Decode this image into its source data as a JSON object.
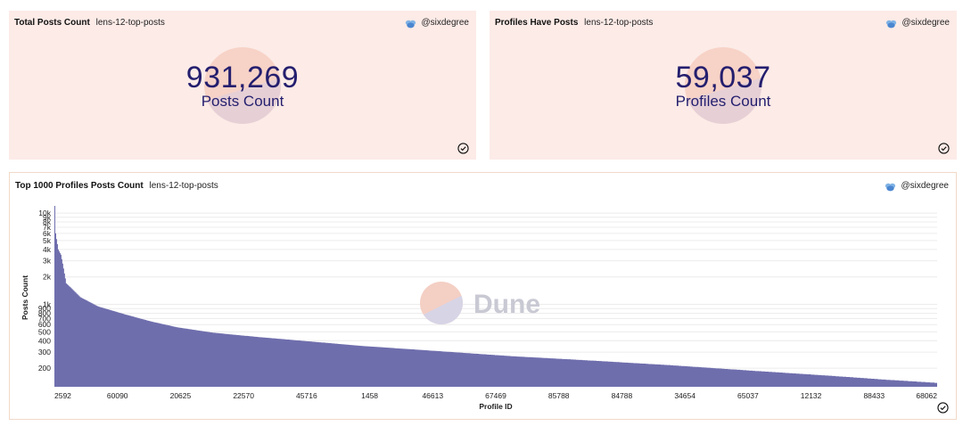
{
  "cards": [
    {
      "title": "Total Posts Count",
      "subtitle": "lens-12-top-posts",
      "author": "@sixdegree",
      "value": "931,269",
      "caption": "Posts Count"
    },
    {
      "title": "Profiles Have Posts",
      "subtitle": "lens-12-top-posts",
      "author": "@sixdegree",
      "value": "59,037",
      "caption": "Profiles Count"
    }
  ],
  "chart_card": {
    "title": "Top 1000 Profiles Posts Count",
    "subtitle": "lens-12-top-posts",
    "author": "@sixdegree",
    "watermark": "Dune"
  },
  "colors": {
    "bar": "#6f6ead",
    "card_bg": "#fcebe7",
    "number": "#241e6e"
  },
  "chart_data": {
    "type": "bar",
    "title": "",
    "xlabel": "Profile ID",
    "ylabel": "Posts Count",
    "y_scale": "log",
    "ylim": [
      125,
      12000
    ],
    "y_ticks": [
      {
        "v": 10000,
        "label": "10k"
      },
      {
        "v": 9000,
        "label": "9k"
      },
      {
        "v": 8000,
        "label": "8k"
      },
      {
        "v": 7000,
        "label": "7k"
      },
      {
        "v": 6000,
        "label": "6k"
      },
      {
        "v": 5000,
        "label": "5k"
      },
      {
        "v": 4000,
        "label": "4k"
      },
      {
        "v": 3000,
        "label": "3k"
      },
      {
        "v": 2000,
        "label": "2k"
      },
      {
        "v": 1000,
        "label": "1k"
      },
      {
        "v": 900,
        "label": "900"
      },
      {
        "v": 800,
        "label": "800"
      },
      {
        "v": 700,
        "label": "700"
      },
      {
        "v": 600,
        "label": "600"
      },
      {
        "v": 500,
        "label": "500"
      },
      {
        "v": 400,
        "label": "400"
      },
      {
        "v": 300,
        "label": "300"
      },
      {
        "v": 200,
        "label": "200"
      }
    ],
    "x_tick_labels": [
      "2592",
      "60090",
      "20625",
      "22570",
      "45716",
      "1458",
      "46613",
      "67469",
      "85788",
      "84788",
      "34654",
      "65037",
      "12132",
      "88433",
      "68062"
    ],
    "rank_count": 1000,
    "rank_anchors": [
      [
        1,
        12000
      ],
      [
        2,
        6000
      ],
      [
        3,
        5200
      ],
      [
        5,
        4000
      ],
      [
        8,
        3500
      ],
      [
        10,
        2800
      ],
      [
        14,
        1700
      ],
      [
        20,
        1500
      ],
      [
        30,
        1200
      ],
      [
        50,
        950
      ],
      [
        80,
        780
      ],
      [
        110,
        650
      ],
      [
        140,
        560
      ],
      [
        180,
        490
      ],
      [
        230,
        440
      ],
      [
        280,
        400
      ],
      [
        350,
        350
      ],
      [
        430,
        310
      ],
      [
        520,
        270
      ],
      [
        600,
        245
      ],
      [
        700,
        215
      ],
      [
        800,
        185
      ],
      [
        880,
        165
      ],
      [
        940,
        150
      ],
      [
        980,
        142
      ],
      [
        1000,
        138
      ]
    ],
    "grid": true,
    "legend": "none"
  }
}
